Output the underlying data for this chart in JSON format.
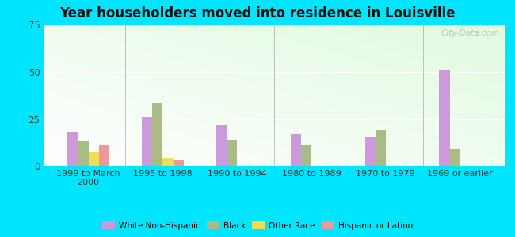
{
  "title": "Year householders moved into residence in Louisville",
  "categories": [
    "1999 to March\n2000",
    "1995 to 1998",
    "1990 to 1994",
    "1980 to 1989",
    "1970 to 1979",
    "1969 or earlier"
  ],
  "series": {
    "White Non-Hispanic": [
      18,
      26,
      22,
      17,
      15,
      51
    ],
    "Black": [
      13,
      33,
      14,
      11,
      19,
      9
    ],
    "Other Race": [
      7,
      4,
      0,
      0,
      0,
      0
    ],
    "Hispanic or Latino": [
      11,
      3,
      0,
      0,
      0,
      0
    ]
  },
  "colors": {
    "White Non-Hispanic": "#cc99dd",
    "Black": "#aabb88",
    "Other Race": "#eedd55",
    "Hispanic or Latino": "#ee9999"
  },
  "ylim": [
    0,
    75
  ],
  "yticks": [
    0,
    25,
    50,
    75
  ],
  "outer_bg": "#00e5ff",
  "bar_width": 0.14,
  "watermark": "City-Data.com"
}
